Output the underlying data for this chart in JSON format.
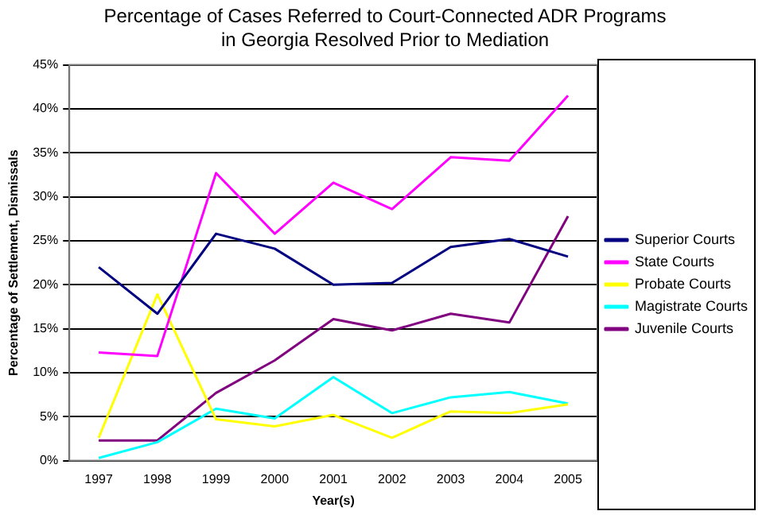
{
  "chart_data": {
    "type": "line",
    "title": "Percentage of Cases Referred to Court-Connected ADR Programs in Georgia Resolved Prior to Mediation",
    "xlabel": "Year(s)",
    "ylabel": "Percentage of Settlement, Dismissals",
    "categories": [
      "1997",
      "1998",
      "1999",
      "2000",
      "2001",
      "2002",
      "2003",
      "2004",
      "2005"
    ],
    "series": [
      {
        "name": "Superior Courts",
        "color": "#000080",
        "values": [
          22,
          16.7,
          25.8,
          24.1,
          20,
          20.2,
          24.3,
          25.2,
          23.2
        ]
      },
      {
        "name": "State Courts",
        "color": "#ff00ff",
        "values": [
          12.3,
          11.9,
          32.7,
          25.8,
          31.6,
          28.6,
          34.5,
          34.1,
          41.5
        ]
      },
      {
        "name": "Probate Courts",
        "color": "#ffff00",
        "values": [
          2.6,
          18.9,
          4.7,
          3.9,
          5.2,
          2.6,
          5.6,
          5.4,
          6.4
        ]
      },
      {
        "name": "Magistrate Courts",
        "color": "#00ffff",
        "values": [
          0.3,
          2.1,
          5.9,
          4.8,
          9.5,
          5.4,
          7.2,
          7.8,
          6.5
        ]
      },
      {
        "name": "Juvenile Courts",
        "color": "#800080",
        "values": [
          2.3,
          2.3,
          7.7,
          11.4,
          16.1,
          14.8,
          16.7,
          15.7,
          27.8
        ]
      }
    ],
    "ylim": [
      0,
      45
    ],
    "yticks": [
      {
        "value": 0,
        "label": "0%"
      },
      {
        "value": 5,
        "label": "5%"
      },
      {
        "value": 10,
        "label": "10%"
      },
      {
        "value": 15,
        "label": "15%"
      },
      {
        "value": 20,
        "label": "20%"
      },
      {
        "value": 25,
        "label": "25%"
      },
      {
        "value": 30,
        "label": "30%"
      },
      {
        "value": 35,
        "label": "35%"
      },
      {
        "value": 40,
        "label": "40%"
      },
      {
        "value": 45,
        "label": "45%"
      }
    ],
    "grid": "y",
    "legend": "right",
    "marker": "none",
    "line_style": "solid"
  }
}
